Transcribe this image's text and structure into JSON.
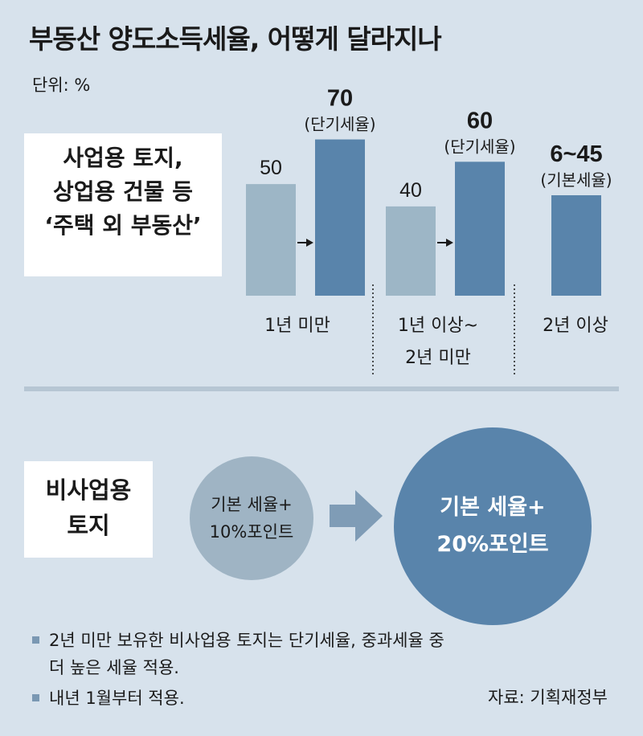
{
  "title": "부동산 양도소득세율, 어떻게 달라지나",
  "unit": "단위: %",
  "section1": {
    "label_lines": [
      "사업용 토지,",
      "상업용 건물 등",
      "‘주택 외 부동산’"
    ]
  },
  "section2": {
    "label_lines": [
      "비사업용",
      "토지"
    ]
  },
  "circles": {
    "before": [
      "기본 세율+",
      "10%포인트"
    ],
    "after": [
      "기본 세율+",
      "20%포인트"
    ]
  },
  "notes": [
    [
      "2년 미만 보유한 비사업용 토지는 단기세율, 중과세율 중",
      "더 높은 세율 적용."
    ],
    [
      "내년 1월부터 적용."
    ]
  ],
  "source": "자료: 기획재정부",
  "colors": {
    "before_bar": "#9db6c6",
    "after_bar": "#5984ab",
    "background": "#d7e2ec"
  },
  "chart_data": {
    "type": "bar",
    "categories": [
      "1년 미만",
      "1년 이상~ 2년 미만",
      "2년 이상"
    ],
    "category_lines": [
      [
        "1년 미만"
      ],
      [
        "1년 이상~",
        "2년 미만"
      ],
      [
        "2년 이상"
      ]
    ],
    "series": [
      {
        "values": [
          50,
          40,
          null
        ]
      },
      {
        "values": [
          70,
          60,
          45
        ]
      }
    ],
    "value_labels": {
      "before": [
        "50",
        "40",
        ""
      ],
      "after": [
        "70",
        "60",
        "6~45"
      ]
    },
    "after_notes": [
      "(단기세율)",
      "(단기세율)",
      "(기본세율)"
    ],
    "ylim": [
      0,
      72
    ],
    "grid": false,
    "legend": "none"
  }
}
